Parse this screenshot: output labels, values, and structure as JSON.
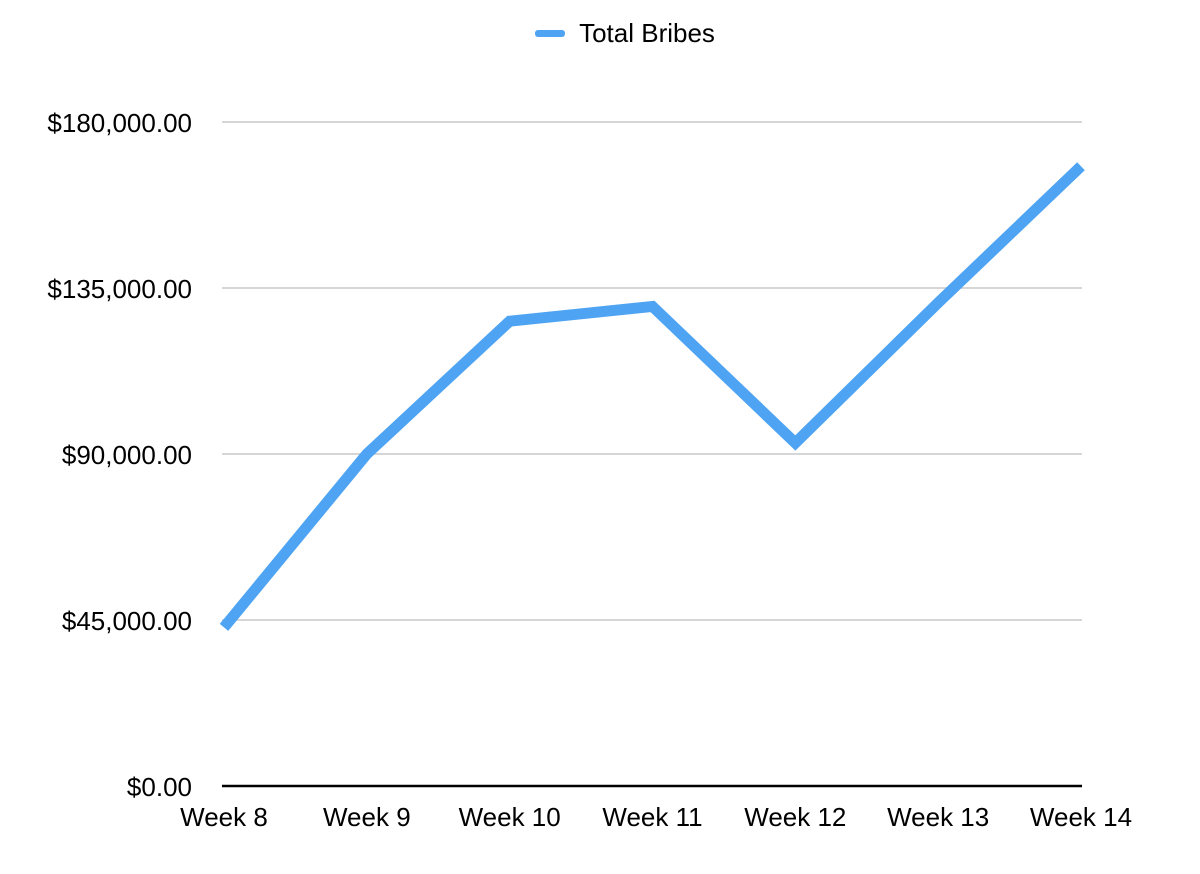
{
  "colors": {
    "series": "#4ea4f3",
    "grid": "#c8c8c8",
    "axis": "#000000"
  },
  "chart_data": {
    "type": "line",
    "title": "",
    "xlabel": "",
    "ylabel": "",
    "categories": [
      "Week 8",
      "Week 9",
      "Week 10",
      "Week 11",
      "Week 12",
      "Week 13",
      "Week 14"
    ],
    "series": [
      {
        "name": "Total Bribes",
        "values": [
          43000,
          90000,
          126000,
          130000,
          93000,
          131000,
          168000
        ]
      }
    ],
    "ylim": [
      0,
      180000
    ],
    "y_ticks": [
      0,
      45000,
      90000,
      135000,
      180000
    ],
    "y_tick_labels": [
      "$0.00",
      "$45,000.00",
      "$90,000.00",
      "$135,000.00",
      "$180,000.00"
    ],
    "grid": true,
    "legend_position": "top-center"
  }
}
